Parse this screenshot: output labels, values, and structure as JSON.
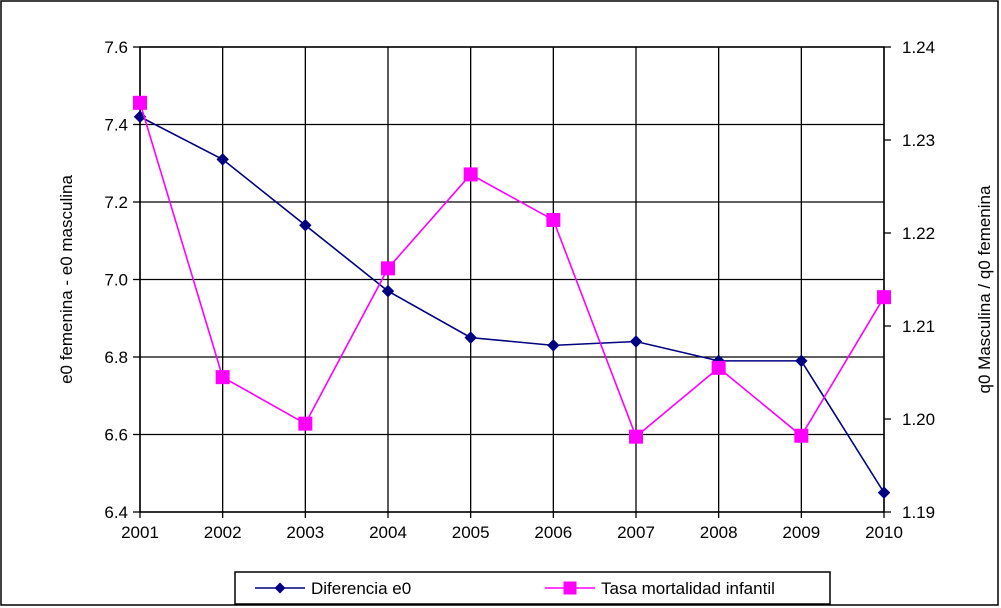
{
  "chart_data": {
    "type": "line",
    "x": [
      "2001",
      "2002",
      "2003",
      "2004",
      "2005",
      "2006",
      "2007",
      "2008",
      "2009",
      "2010"
    ],
    "series": [
      {
        "name": "Diferencia e0",
        "axis": "left",
        "color": "#000080",
        "marker": "diamond",
        "values": [
          7.42,
          7.31,
          7.14,
          6.97,
          6.85,
          6.83,
          6.84,
          6.79,
          6.79,
          6.45
        ]
      },
      {
        "name": "Tasa mortalidad infantil",
        "axis": "right",
        "color": "#ff00ff",
        "marker": "square",
        "values": [
          1.234,
          1.2045,
          1.1995,
          1.2162,
          1.2263,
          1.2214,
          1.1981,
          1.2055,
          1.1982,
          1.2131
        ]
      }
    ],
    "ylabel_left": "e0 femenina - e0 masculina",
    "ylabel_right": "q0 Masculina / q0 femenina",
    "ylim_left": [
      6.4,
      7.6
    ],
    "ylim_right": [
      1.19,
      1.24
    ],
    "yticks_left": [
      "6.4",
      "6.6",
      "6.8",
      "7.0",
      "7.2",
      "7.4",
      "7.6"
    ],
    "yticks_right": [
      "1.19",
      "1.20",
      "1.21",
      "1.22",
      "1.23",
      "1.24"
    ],
    "grid": true,
    "legend_position": "bottom"
  }
}
